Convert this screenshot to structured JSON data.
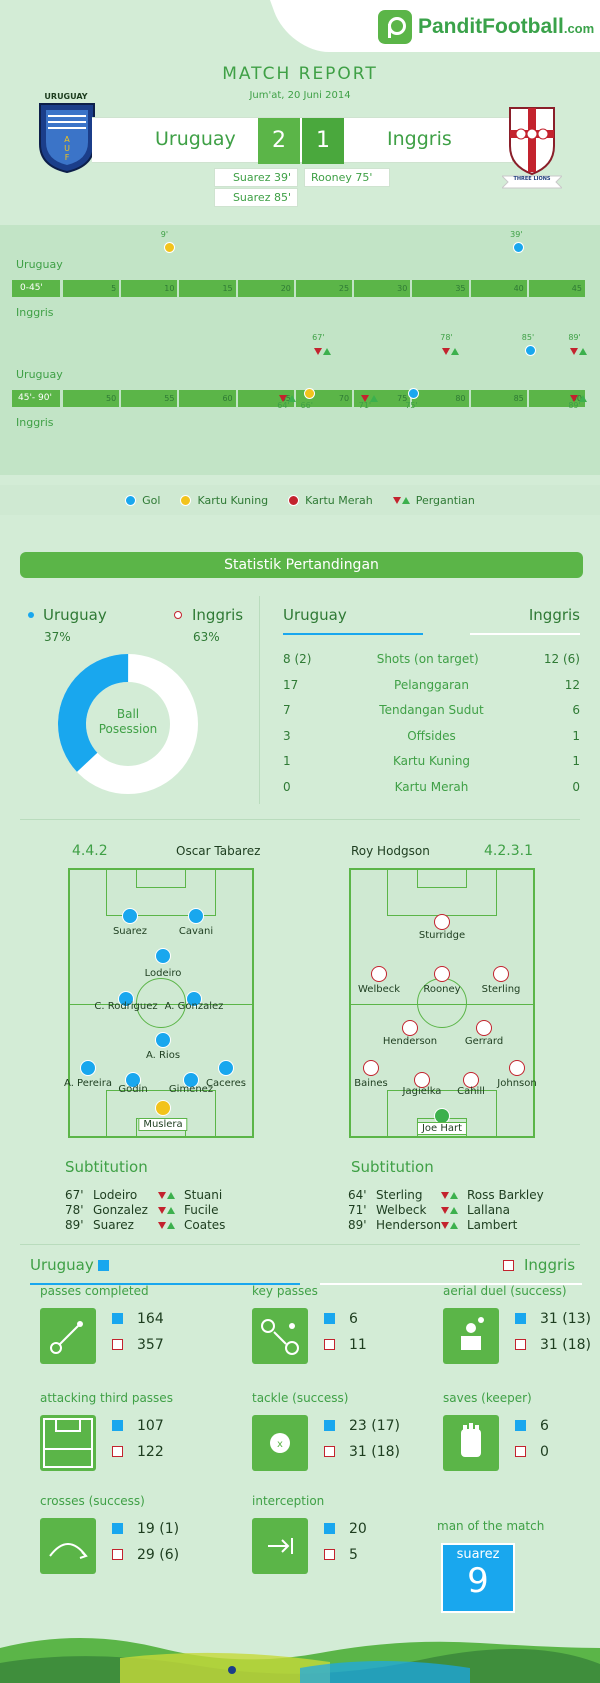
{
  "site": {
    "logo_text": "PanditFootball",
    "logo_tld": ".com"
  },
  "header": {
    "title": "MATCH REPORT",
    "date": "Jum'at, 20 Juni 2014"
  },
  "home": {
    "name": "Uruguay",
    "badge_text": "URUGUAY",
    "score": "2",
    "scorers": [
      "Suarez 39'",
      "Suarez 85'"
    ]
  },
  "away": {
    "name": "Inggris",
    "badge_text": "THREE LIONS",
    "score": "1",
    "scorers": [
      "Rooney 75'"
    ]
  },
  "timeline": {
    "first_half_label": "0-45'",
    "second_half_label": "45'- 90'",
    "first_ticks": [
      "5",
      "10",
      "15",
      "20",
      "25",
      "30",
      "35",
      "40",
      "45"
    ],
    "second_ticks": [
      "50",
      "55",
      "60",
      "65",
      "70",
      "75",
      "80",
      "85",
      "90"
    ],
    "team_top": "Uruguay",
    "team_bottom": "Inggris",
    "events": [
      {
        "half": 1,
        "team": "home",
        "type": "yellow",
        "minute": "9'"
      },
      {
        "half": 1,
        "team": "home",
        "type": "goal",
        "minute": "39'"
      },
      {
        "half": 2,
        "team": "home",
        "type": "sub",
        "minute": "67'"
      },
      {
        "half": 2,
        "team": "home",
        "type": "sub",
        "minute": "78'"
      },
      {
        "half": 2,
        "team": "home",
        "type": "goal",
        "minute": "85'"
      },
      {
        "half": 2,
        "team": "home",
        "type": "sub",
        "minute": "89'"
      },
      {
        "half": 2,
        "team": "away",
        "type": "sub",
        "minute": "64'"
      },
      {
        "half": 2,
        "team": "away",
        "type": "yellow",
        "minute": "66'"
      },
      {
        "half": 2,
        "team": "away",
        "type": "sub",
        "minute": "71'"
      },
      {
        "half": 2,
        "team": "away",
        "type": "goal",
        "minute": "75'"
      },
      {
        "half": 2,
        "team": "away",
        "type": "sub",
        "minute": "89'"
      }
    ]
  },
  "legend": {
    "goal": "Gol",
    "yellow": "Kartu Kuning",
    "red": "Kartu Merah",
    "sub": "Pergantian"
  },
  "stats": {
    "title": "Statistik Pertandingan",
    "home_pct": "37%",
    "away_pct": "63%",
    "possession_home": 0.37,
    "center_label_1": "Ball",
    "center_label_2": "Posession",
    "table_home": "Uruguay",
    "table_away": "Inggris",
    "rows": [
      {
        "h": "8 (2)",
        "label": "Shots (on target)",
        "a": "12 (6)"
      },
      {
        "h": "17",
        "label": "Pelanggaran",
        "a": "12"
      },
      {
        "h": "7",
        "label": "Tendangan Sudut",
        "a": "6"
      },
      {
        "h": "3",
        "label": "Offsides",
        "a": "1"
      },
      {
        "h": "1",
        "label": "Kartu Kuning",
        "a": "1"
      },
      {
        "h": "0",
        "label": "Kartu Merah",
        "a": "0"
      }
    ]
  },
  "lineups": {
    "home": {
      "formation": "4.4.2",
      "coach": "Oscar Tabarez",
      "players": [
        "Suarez",
        "Cavani",
        "Lodeiro",
        "C. Rodriguez",
        "A. Gonzalez",
        "A. Rios",
        "A. Pereira",
        "Godin",
        "Gimenez",
        "Caceres",
        "Muslera"
      ]
    },
    "away": {
      "formation": "4.2.3.1",
      "coach": "Roy Hodgson",
      "players": [
        "Sturridge",
        "Welbeck",
        "Rooney",
        "Sterling",
        "Henderson",
        "Gerrard",
        "Baines",
        "Jagielka",
        "Cahill",
        "Johnson",
        "Joe Hart"
      ]
    }
  },
  "subs": {
    "title": "Subtitution",
    "home": [
      {
        "min": "67'",
        "out": "Lodeiro",
        "in": "Stuani"
      },
      {
        "min": "78'",
        "out": "Gonzalez",
        "in": "Fucile"
      },
      {
        "min": "89'",
        "out": "Suarez",
        "in": "Coates"
      }
    ],
    "away": [
      {
        "min": "64'",
        "out": "Sterling",
        "in": "Ross Barkley"
      },
      {
        "min": "71'",
        "out": "Welbeck",
        "in": "Lallana"
      },
      {
        "min": "89'",
        "out": "Henderson",
        "in": "Lambert"
      }
    ]
  },
  "detail": {
    "home": "Uruguay",
    "away": "Inggris",
    "cards": [
      {
        "label": "passes completed",
        "icon": "pass-icon",
        "h": "164",
        "a": "357"
      },
      {
        "label": "key passes",
        "icon": "key-pass-icon",
        "h": "6",
        "a": "11"
      },
      {
        "label": "aerial duel  (success)",
        "icon": "aerial-duel-icon",
        "h": "31 (13)",
        "a": "31 (18)"
      },
      {
        "label": "attacking third passes",
        "icon": "attacking-third-icon",
        "h": "107",
        "a": "122"
      },
      {
        "label": "tackle (success)",
        "icon": "tackle-icon",
        "h": "23 (17)",
        "a": "31 (18)"
      },
      {
        "label": "saves (keeper)",
        "icon": "glove-icon",
        "h": "6",
        "a": "0"
      },
      {
        "label": "crosses (success)",
        "icon": "cross-icon",
        "h": "19 (1)",
        "a": "29 (6)"
      },
      {
        "label": "interception",
        "icon": "interception-icon",
        "h": "20",
        "a": "5"
      }
    ],
    "motm_label": "man of the match",
    "motm_name": "suarez",
    "motm_number": "9"
  }
}
